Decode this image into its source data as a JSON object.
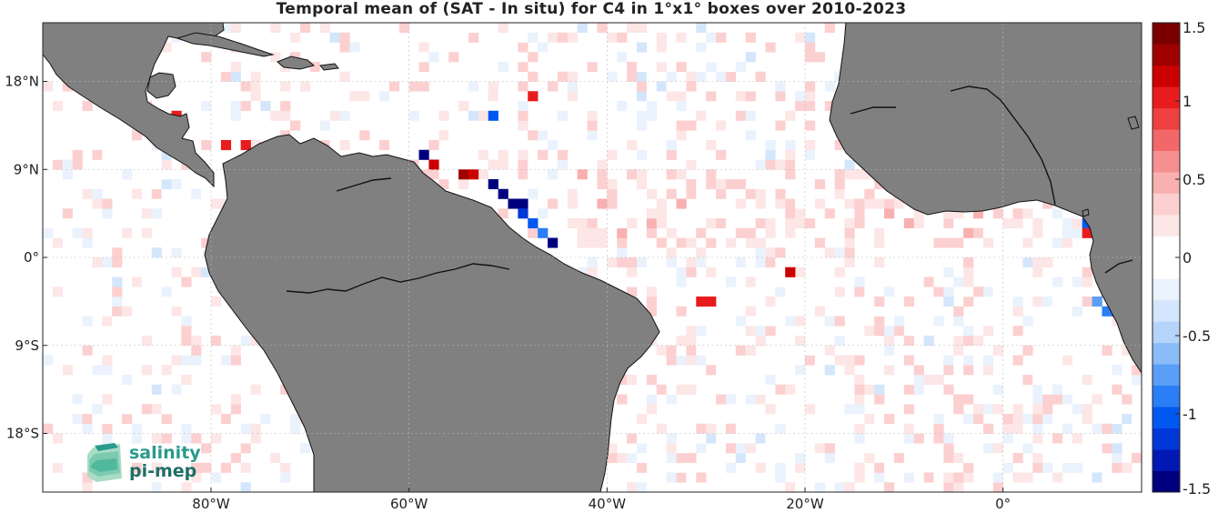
{
  "title": "Temporal mean of (SAT - In situ) for C4 in 1°x1° boxes over 2010-2023",
  "map": {
    "lon_ticks": [
      {
        "value": -80,
        "label": "80°W"
      },
      {
        "value": -60,
        "label": "60°W"
      },
      {
        "value": -40,
        "label": "40°W"
      },
      {
        "value": -20,
        "label": "20°W"
      },
      {
        "value": 0,
        "label": "0°"
      }
    ],
    "lat_ticks": [
      {
        "value": 18,
        "label": "18°N"
      },
      {
        "value": 9,
        "label": "9°N"
      },
      {
        "value": 0,
        "label": "0°"
      },
      {
        "value": -9,
        "label": "9°S"
      },
      {
        "value": -18,
        "label": "18°S"
      }
    ],
    "extent": {
      "lon_min": -97,
      "lon_max": 14,
      "lat_min": -24,
      "lat_max": 24
    },
    "land_color": "#808080",
    "grid": true
  },
  "colorbar": {
    "range": [
      -1.5,
      1.5
    ],
    "ticks": [
      {
        "value": 1.5,
        "label": "1.5"
      },
      {
        "value": 1,
        "label": "1"
      },
      {
        "value": 0.5,
        "label": "0.5"
      },
      {
        "value": 0,
        "label": "0"
      },
      {
        "value": -0.5,
        "label": "-0.5"
      },
      {
        "value": -1,
        "label": "-1"
      },
      {
        "value": -1.5,
        "label": "-1.5"
      }
    ],
    "colors": [
      "#00007f",
      "#0018b4",
      "#0038d8",
      "#0058f0",
      "#2a7ef7",
      "#5a9ef8",
      "#8abcf8",
      "#b4d4fa",
      "#d4e6fb",
      "#eaf2fd",
      "#ffffff",
      "#ffffff",
      "#fde6e6",
      "#fcd0d0",
      "#f9b0b0",
      "#f69090",
      "#f26868",
      "#ee4040",
      "#e81c1c",
      "#cc0000",
      "#a00000",
      "#7a0000"
    ]
  },
  "logo": {
    "line1": "salinity",
    "line2": "pi-mep"
  },
  "highlight_cells": [
    {
      "lon": -52,
      "lat": 7,
      "value": -1.5
    },
    {
      "lon": -51,
      "lat": 6,
      "value": -1.5
    },
    {
      "lon": -50,
      "lat": 5,
      "value": -1.5
    },
    {
      "lon": -49,
      "lat": 5,
      "value": -1.4
    },
    {
      "lon": -49,
      "lat": 4,
      "value": -1.2
    },
    {
      "lon": -48,
      "lat": 3,
      "value": -1.0
    },
    {
      "lon": -47,
      "lat": 2,
      "value": -0.9
    },
    {
      "lon": -46,
      "lat": 1,
      "value": -1.5
    },
    {
      "lon": -59,
      "lat": 10,
      "value": -1.5
    },
    {
      "lon": -58,
      "lat": 9,
      "value": 1.2
    },
    {
      "lon": -55,
      "lat": 8,
      "value": 1.3
    },
    {
      "lon": -54,
      "lat": 8,
      "value": 1.1
    },
    {
      "lon": 10,
      "lat": -4,
      "value": -1.5
    },
    {
      "lon": 11,
      "lat": -5,
      "value": -1.5
    },
    {
      "lon": 11,
      "lat": -6,
      "value": -1.3
    },
    {
      "lon": 10,
      "lat": -6,
      "value": -0.9
    },
    {
      "lon": 9,
      "lat": -5,
      "value": -0.8
    },
    {
      "lon": 8,
      "lat": 3,
      "value": -1.0
    },
    {
      "lon": 9,
      "lat": 2,
      "value": 1.1
    },
    {
      "lon": 8,
      "lat": 2,
      "value": 1.0
    },
    {
      "lon": -31,
      "lat": -5,
      "value": 1.0
    },
    {
      "lon": -30,
      "lat": -5,
      "value": 1.0
    },
    {
      "lon": -22,
      "lat": -2,
      "value": 1.2
    },
    {
      "lon": -77,
      "lat": 11,
      "value": 1.0
    },
    {
      "lon": -79,
      "lat": 11,
      "value": 1.0
    },
    {
      "lon": -84,
      "lat": 14,
      "value": 1.0
    },
    {
      "lon": -48,
      "lat": 16,
      "value": 1.0
    },
    {
      "lon": -52,
      "lat": 14,
      "value": -1.0
    }
  ]
}
